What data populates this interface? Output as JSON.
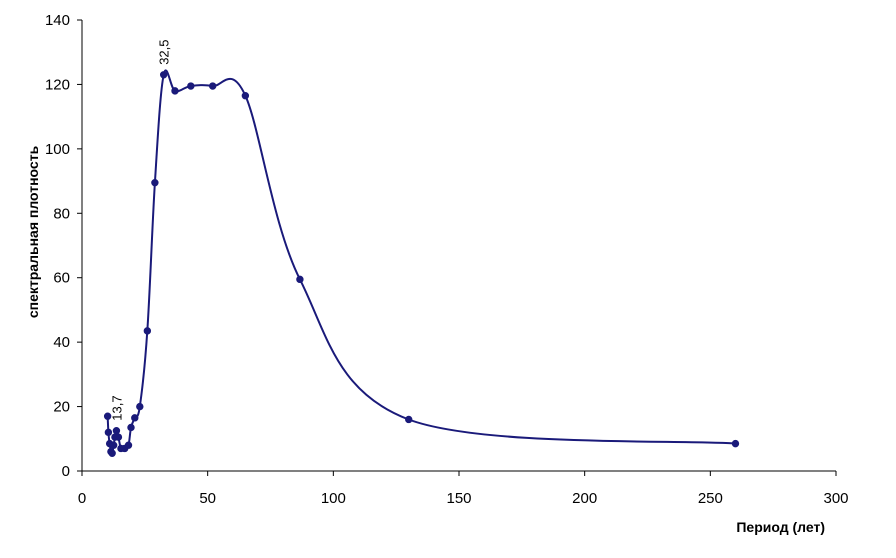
{
  "chart_data": {
    "type": "line",
    "title": "",
    "xlabel": "Период (лет)",
    "ylabel": "спектральная плотность",
    "xlim": [
      0,
      300
    ],
    "ylim": [
      0,
      140
    ],
    "xticks": [
      0,
      50,
      100,
      150,
      200,
      250,
      300
    ],
    "yticks": [
      0,
      20,
      40,
      60,
      80,
      100,
      120,
      140
    ],
    "grid": false,
    "legend": "none",
    "colors": {
      "line": "#1a1a7a",
      "marker": "#1a1a7a"
    },
    "series": [
      {
        "values": [
          [
            10.2,
            17
          ],
          [
            10.5,
            12
          ],
          [
            11,
            8.5
          ],
          [
            11.5,
            6
          ],
          [
            12,
            5.5
          ],
          [
            12.6,
            8
          ],
          [
            13.1,
            10.5
          ],
          [
            13.7,
            12.5
          ],
          [
            14.5,
            10.5
          ],
          [
            15.5,
            7
          ],
          [
            17,
            7
          ],
          [
            18.5,
            8
          ],
          [
            19.5,
            13.5
          ],
          [
            21,
            16.5
          ],
          [
            23,
            20
          ],
          [
            26,
            43.5
          ],
          [
            29,
            89.5
          ],
          [
            32.5,
            123
          ],
          [
            37,
            118
          ],
          [
            43.3,
            119.5
          ],
          [
            52,
            119.5
          ],
          [
            65,
            116.5
          ],
          [
            86.7,
            59.5
          ],
          [
            130,
            16
          ],
          [
            260,
            8.5
          ]
        ]
      }
    ],
    "annotations": [
      {
        "text": "32,5",
        "x": 32.5,
        "y": 123
      },
      {
        "text": "13,7",
        "x": 13.7,
        "y": 12.5
      }
    ]
  }
}
